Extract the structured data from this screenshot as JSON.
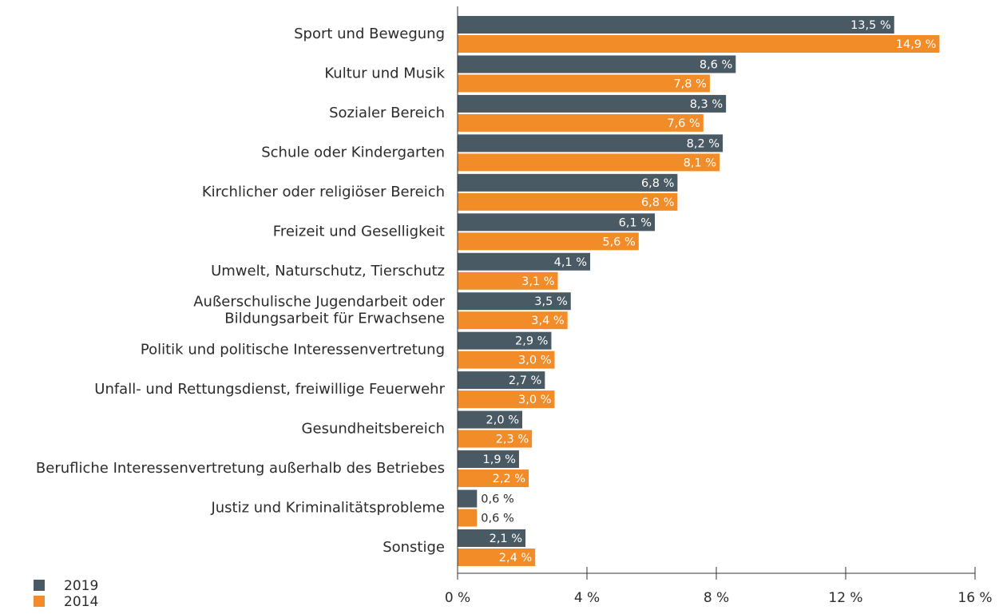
{
  "chart_data": {
    "type": "bar",
    "orientation": "horizontal",
    "categories": [
      "Sport und Bewegung",
      "Kultur und Musik",
      "Sozialer Bereich",
      "Schule oder Kindergarten",
      "Kirchlicher oder religiöser Bereich",
      "Freizeit und Geselligkeit",
      "Umwelt, Naturschutz, Tierschutz",
      "Außerschulische Jugendarbeit oder\nBildungsarbeit für Erwachsene",
      "Politik und politische Interessenvertretung",
      "Unfall- und Rettungsdienst, freiwillige Feuerwehr",
      "Gesundheitsbereich",
      "Berufliche Interessenvertretung außerhalb des Betriebes",
      "Justiz und Kriminalitätsprobleme",
      "Sonstige"
    ],
    "series": [
      {
        "name": "2019",
        "color": "#4a5a64",
        "values": [
          13.5,
          8.6,
          8.3,
          8.2,
          6.8,
          6.1,
          4.1,
          3.5,
          2.9,
          2.7,
          2.0,
          1.9,
          0.6,
          2.1
        ],
        "value_labels": [
          "13,5 %",
          "8,6 %",
          "8,3 %",
          "8,2 %",
          "6,8 %",
          "6,1 %",
          "4,1 %",
          "3,5 %",
          "2,9 %",
          "2,7 %",
          "2,0 %",
          "1,9 %",
          "0,6 %",
          "2,1 %"
        ]
      },
      {
        "name": "2014",
        "color": "#f28c28",
        "values": [
          14.9,
          7.8,
          7.6,
          8.1,
          6.8,
          5.6,
          3.1,
          3.4,
          3.0,
          3.0,
          2.3,
          2.2,
          0.6,
          2.4
        ],
        "value_labels": [
          "14,9 %",
          "7,8 %",
          "7,6 %",
          "8,1 %",
          "6,8 %",
          "5,6 %",
          "3,1 %",
          "3,4 %",
          "3,0 %",
          "3,0 %",
          "2,3 %",
          "2,2 %",
          "0,6 %",
          "2,4 %"
        ]
      }
    ],
    "xlim": [
      0,
      16
    ],
    "xticks": [
      {
        "value": 0,
        "label": "0 %"
      },
      {
        "value": 4,
        "label": "4 %"
      },
      {
        "value": 8,
        "label": "8 %"
      },
      {
        "value": 12,
        "label": "12 %"
      },
      {
        "value": 16,
        "label": "16 %"
      }
    ],
    "legend": "bottom-left"
  }
}
